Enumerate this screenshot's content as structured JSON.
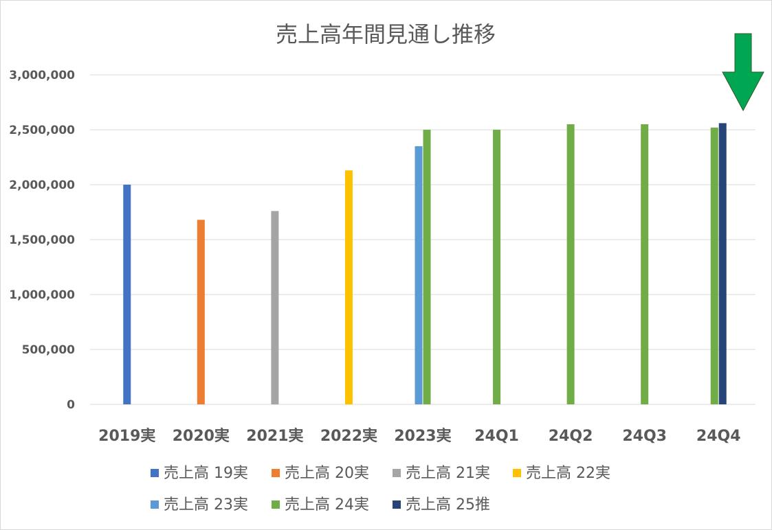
{
  "chart_data": {
    "type": "bar",
    "title": "売上高年間見通し推移",
    "xlabel": "",
    "ylabel": "",
    "ylim": [
      0,
      3000000
    ],
    "yticks": [
      "0",
      "500,000",
      "1,000,000",
      "1,500,000",
      "2,000,000",
      "2,500,000",
      "3,000,000"
    ],
    "ytick_values": [
      0,
      500000,
      1000000,
      1500000,
      2000000,
      2500000,
      3000000
    ],
    "categories": [
      "2019実",
      "2020実",
      "2021実",
      "2022実",
      "2023実",
      "24Q1",
      "24Q2",
      "24Q3",
      "24Q4"
    ],
    "grid": true,
    "legend_position": "bottom",
    "series": [
      {
        "name": "売上高 19実",
        "color": "#4472C4",
        "values": [
          2000000,
          null,
          null,
          null,
          null,
          null,
          null,
          null,
          null
        ]
      },
      {
        "name": "売上高 20実",
        "color": "#ED7D31",
        "values": [
          null,
          1680000,
          null,
          null,
          null,
          null,
          null,
          null,
          null
        ]
      },
      {
        "name": "売上高 21実",
        "color": "#A5A5A5",
        "values": [
          null,
          null,
          1760000,
          null,
          null,
          null,
          null,
          null,
          null
        ]
      },
      {
        "name": "売上高 22実",
        "color": "#FFC000",
        "values": [
          null,
          null,
          null,
          2130000,
          null,
          null,
          null,
          null,
          null
        ]
      },
      {
        "name": "売上高 23実",
        "color": "#5B9BD5",
        "values": [
          null,
          null,
          null,
          null,
          2350000,
          null,
          null,
          null,
          null
        ]
      },
      {
        "name": "売上高 24実",
        "color": "#70AD47",
        "values": [
          null,
          null,
          null,
          null,
          2500000,
          2500000,
          2550000,
          2550000,
          2520000
        ]
      },
      {
        "name": "売上高 25推",
        "color": "#264478",
        "values": [
          null,
          null,
          null,
          null,
          null,
          null,
          null,
          null,
          2560000
        ]
      }
    ],
    "annotation": {
      "type": "arrow-down",
      "color": "#00A651",
      "points_to": "24Q4"
    }
  }
}
